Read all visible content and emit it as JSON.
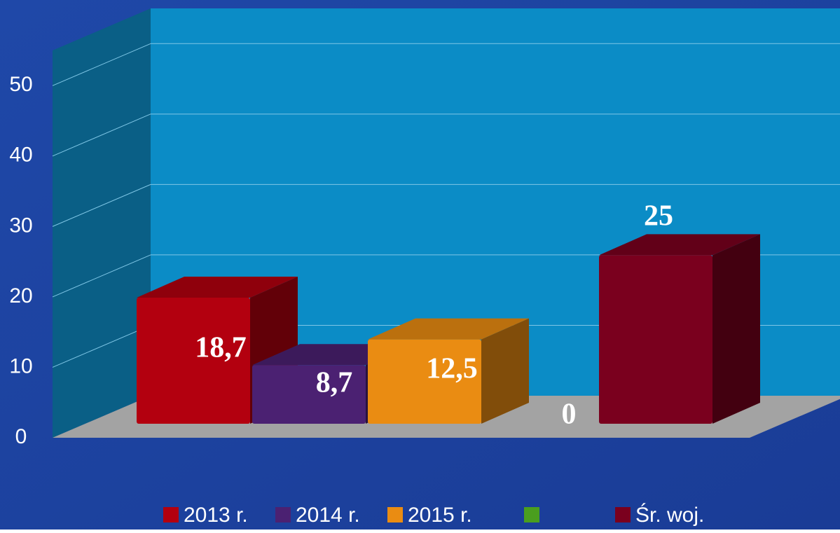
{
  "chart_data": {
    "type": "bar3d",
    "categories": [
      "2013 r.",
      "2014 r.",
      "2015 r.",
      null,
      "Śr. woj."
    ],
    "values": [
      18.7,
      8.7,
      12.5,
      0,
      25
    ],
    "value_labels": [
      "18,7",
      "8,7",
      "12,5",
      "0",
      "25"
    ],
    "colors": [
      "#b3000f",
      "#4b2172",
      "#ea8c12",
      "#4a9e1e",
      "#7a001e"
    ],
    "ylim": [
      0,
      55
    ],
    "yticks": [
      0,
      10,
      20,
      30,
      40,
      50
    ],
    "grid": true,
    "legend": "bottom"
  }
}
